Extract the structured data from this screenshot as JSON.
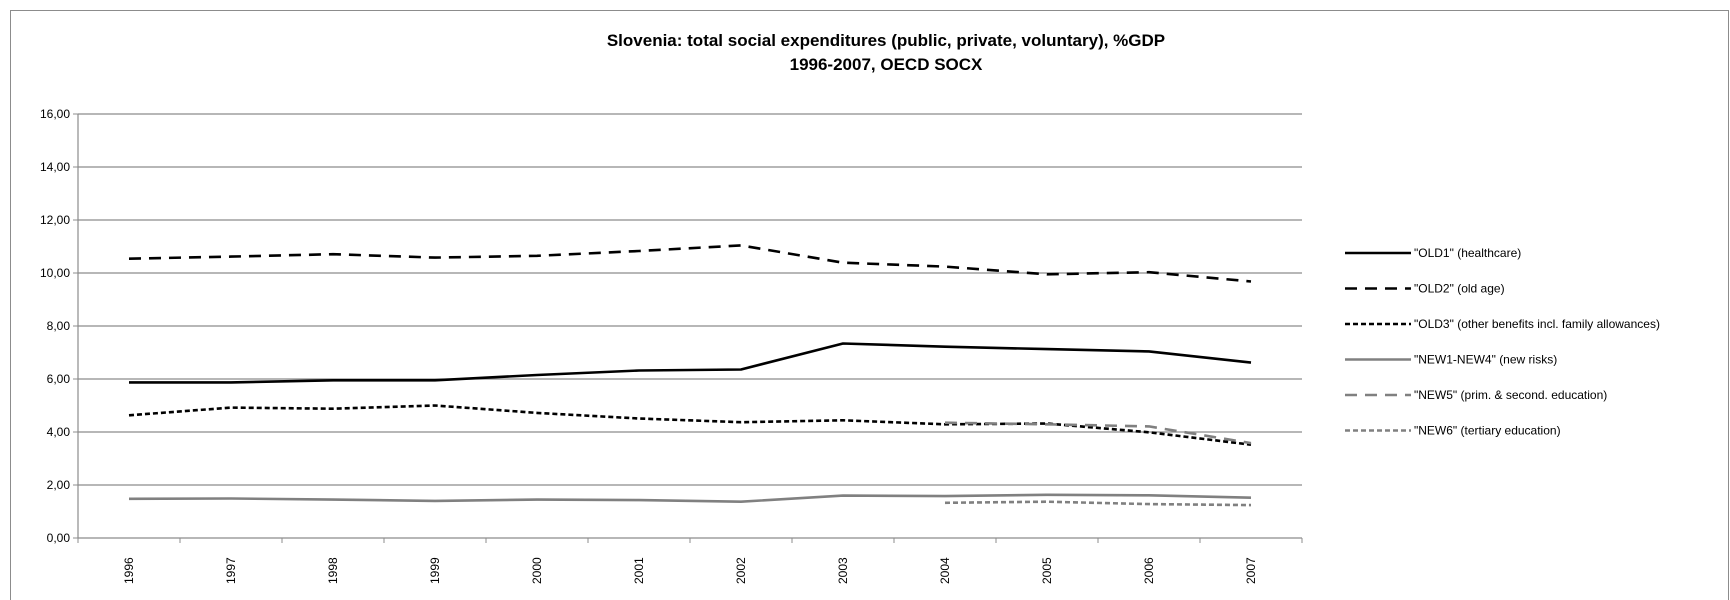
{
  "chart_data": {
    "type": "line",
    "title": "Slovenia:  total social expenditures (public, private, voluntary), %GDP",
    "subtitle": "1996-2007, OECD SOCX",
    "xlabel": "",
    "ylabel": "",
    "ylim": [
      0,
      16
    ],
    "ytick_labels": [
      "0,00",
      "2,00",
      "4,00",
      "6,00",
      "8,00",
      "10,00",
      "12,00",
      "14,00",
      "16,00"
    ],
    "categories": [
      "1996",
      "1997",
      "1998",
      "1999",
      "2000",
      "2001",
      "2002",
      "2003",
      "2004",
      "2005",
      "2006",
      "2007"
    ],
    "grid": "horizontal",
    "legend_position": "right",
    "series": [
      {
        "name": "\"OLD1\" (healthcare)",
        "color": "#000000",
        "dash": "solid",
        "values": [
          5.87,
          5.87,
          5.95,
          5.95,
          6.15,
          6.32,
          6.36,
          7.34,
          7.22,
          7.13,
          7.04,
          6.62
        ]
      },
      {
        "name": "\"OLD2\" (old age)",
        "color": "#000000",
        "dash": "long-dash",
        "values": [
          10.54,
          10.62,
          10.71,
          10.58,
          10.65,
          10.83,
          11.04,
          10.39,
          10.24,
          9.95,
          10.03,
          9.68
        ]
      },
      {
        "name": "\"OLD3\" (other benefits incl. family allowances)",
        "color": "#000000",
        "dash": "short-dash",
        "values": [
          4.63,
          4.92,
          4.88,
          5.0,
          4.72,
          4.51,
          4.37,
          4.44,
          4.29,
          4.32,
          3.99,
          3.52
        ]
      },
      {
        "name": "\"NEW1-NEW4\" (new risks)",
        "color": "#808080",
        "dash": "solid",
        "values": [
          1.48,
          1.49,
          1.45,
          1.4,
          1.45,
          1.43,
          1.37,
          1.6,
          1.58,
          1.63,
          1.61,
          1.52
        ]
      },
      {
        "name": "\"NEW5\" (prim. &  second. education)",
        "color": "#808080",
        "dash": "long-dash",
        "values": [
          null,
          null,
          null,
          null,
          null,
          null,
          null,
          null,
          4.35,
          4.29,
          4.21,
          3.58
        ]
      },
      {
        "name": "\"NEW6\" (tertiary education)",
        "color": "#808080",
        "dash": "short-dash",
        "values": [
          null,
          null,
          null,
          null,
          null,
          null,
          null,
          null,
          1.33,
          1.37,
          1.28,
          1.24
        ]
      }
    ]
  }
}
